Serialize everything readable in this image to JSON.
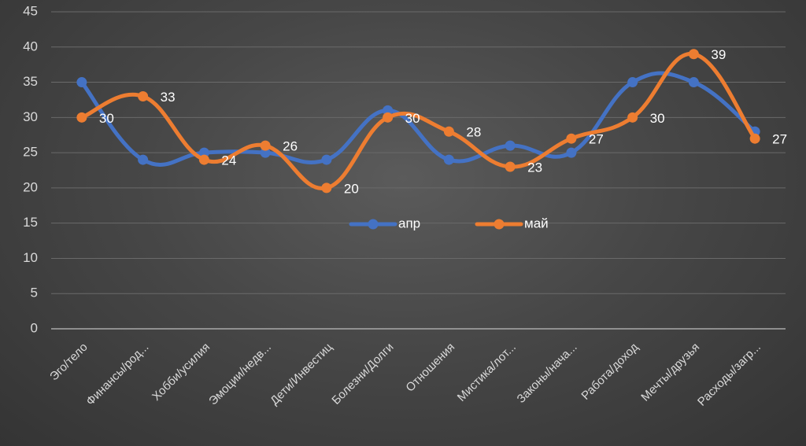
{
  "chart_data": {
    "type": "line",
    "smooth": true,
    "categories": [
      "Эго/тело",
      "Финансы/род...",
      "Хобби/усилия",
      "Эмоции/недв...",
      "Дети/Инвестиц",
      "Болезни/Долги",
      "Отношения",
      "Мистика/лот...",
      "Законы/нача...",
      "Работа/доход",
      "Мечты/друзья",
      "Расходы/загр..."
    ],
    "series": [
      {
        "name": "апр",
        "color": "#4472c4",
        "values": [
          35,
          24,
          25,
          25,
          24,
          31,
          24,
          26,
          25,
          35,
          35,
          28
        ],
        "show_labels": false
      },
      {
        "name": "май",
        "color": "#ed7d31",
        "values": [
          30,
          33,
          24,
          26,
          20,
          30,
          28,
          23,
          27,
          30,
          39,
          27
        ],
        "show_labels": true
      }
    ],
    "ylim": [
      0,
      45
    ],
    "yticks": [
      0,
      5,
      10,
      15,
      20,
      25,
      30,
      35,
      40,
      45
    ],
    "grid": true,
    "legend_position": "center-inside",
    "title": "",
    "xlabel": "",
    "ylabel": ""
  }
}
